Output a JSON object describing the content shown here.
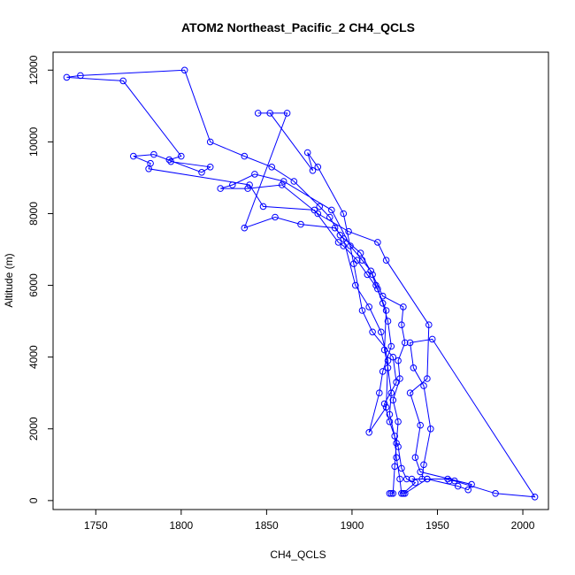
{
  "chart_data": {
    "type": "line",
    "title": "ATOM2 Northeast_Pacific_2 CH4_QCLS",
    "xlabel": "CH4_QCLS",
    "ylabel": "Altitude (m)",
    "xlim": [
      1725,
      2015
    ],
    "ylim": [
      -250,
      12500
    ],
    "xticks": [
      1750,
      1800,
      1850,
      1900,
      1950,
      2000
    ],
    "yticks": [
      0,
      2000,
      4000,
      6000,
      8000,
      10000,
      12000
    ],
    "grid": false,
    "legend": "none",
    "marker": "open-circle",
    "color": "#0000ff",
    "series": [
      {
        "points": [
          [
            1922,
            200
          ],
          [
            1923,
            200
          ],
          [
            1924,
            200
          ],
          [
            1925,
            950
          ],
          [
            1926,
            1600
          ],
          [
            1927,
            2200
          ],
          [
            1924,
            2800
          ],
          [
            1928,
            3400
          ],
          [
            1927,
            3900
          ],
          [
            1931,
            4400
          ],
          [
            1929,
            4900
          ],
          [
            1930,
            5400
          ],
          [
            1918,
            5700
          ],
          [
            1912,
            6300
          ],
          [
            1905,
            6900
          ],
          [
            1893,
            7400
          ],
          [
            1887,
            7900
          ],
          [
            1881,
            8200
          ],
          [
            1866,
            8900
          ],
          [
            1853,
            9300
          ],
          [
            1837,
            9600
          ],
          [
            1817,
            10000
          ],
          [
            1802,
            12000
          ],
          [
            1741,
            11850
          ],
          [
            1733,
            11800
          ],
          [
            1766,
            11700
          ],
          [
            1800,
            9600
          ],
          [
            1793,
            9500
          ],
          [
            1794,
            9450
          ],
          [
            1817,
            9300
          ],
          [
            1812,
            9150
          ],
          [
            1784,
            9650
          ],
          [
            1772,
            9600
          ],
          [
            1782,
            9400
          ],
          [
            1781,
            9250
          ],
          [
            1840,
            8800
          ],
          [
            1848,
            8200
          ],
          [
            1878,
            8100
          ],
          [
            1892,
            7200
          ],
          [
            1895,
            7100
          ],
          [
            1903,
            6700
          ],
          [
            1909,
            6300
          ],
          [
            1915,
            5900
          ],
          [
            1920,
            5300
          ],
          [
            1919,
            4200
          ],
          [
            1921,
            3700
          ],
          [
            1923,
            3000
          ],
          [
            1922,
            2400
          ],
          [
            1925,
            1800
          ],
          [
            1926,
            1200
          ],
          [
            1928,
            600
          ],
          [
            1929,
            200
          ],
          [
            1930,
            200
          ],
          [
            1931,
            200
          ],
          [
            1944,
            600
          ],
          [
            1956,
            600
          ],
          [
            1957,
            550
          ],
          [
            1960,
            550
          ],
          [
            1984,
            200
          ],
          [
            2007,
            100
          ],
          [
            1947,
            4500
          ],
          [
            1934,
            4400
          ],
          [
            1936,
            3700
          ],
          [
            1942,
            3200
          ],
          [
            1946,
            2000
          ],
          [
            1942,
            1000
          ],
          [
            1941,
            600
          ],
          [
            1935,
            600
          ],
          [
            1944,
            600
          ],
          [
            1962,
            400
          ],
          [
            1968,
            300
          ],
          [
            1970,
            450
          ],
          [
            1940,
            800
          ],
          [
            1937,
            1200
          ],
          [
            1940,
            2100
          ],
          [
            1934,
            3000
          ],
          [
            1944,
            3400
          ],
          [
            1945,
            4900
          ],
          [
            1920,
            6700
          ],
          [
            1915,
            7200
          ],
          [
            1898,
            7500
          ],
          [
            1880,
            8000
          ],
          [
            1859,
            8800
          ],
          [
            1839,
            8700
          ],
          [
            1823,
            8700
          ],
          [
            1830,
            8800
          ],
          [
            1843,
            9100
          ],
          [
            1860,
            8900
          ],
          [
            1888,
            8100
          ],
          [
            1899,
            7100
          ],
          [
            1906,
            6700
          ],
          [
            1911,
            6400
          ],
          [
            1914,
            6000
          ],
          [
            1918,
            5500
          ],
          [
            1921,
            5000
          ],
          [
            1923,
            4300
          ],
          [
            1918,
            3600
          ],
          [
            1916,
            3000
          ],
          [
            1910,
            1900
          ],
          [
            1920,
            2600
          ],
          [
            1921,
            3900
          ],
          [
            1917,
            4700
          ],
          [
            1910,
            5400
          ],
          [
            1902,
            6000
          ],
          [
            1895,
            7300
          ],
          [
            1890,
            7600
          ],
          [
            1870,
            7700
          ],
          [
            1855,
            7900
          ],
          [
            1837,
            7600
          ],
          [
            1862,
            10800
          ],
          [
            1845,
            10800
          ],
          [
            1852,
            10800
          ],
          [
            1877,
            9200
          ],
          [
            1874,
            9700
          ],
          [
            1880,
            9300
          ],
          [
            1895,
            8000
          ],
          [
            1901,
            6600
          ],
          [
            1906,
            5300
          ],
          [
            1912,
            4700
          ],
          [
            1924,
            4000
          ],
          [
            1926,
            3300
          ],
          [
            1919,
            2700
          ],
          [
            1922,
            2200
          ],
          [
            1927,
            1500
          ],
          [
            1929,
            900
          ],
          [
            1932,
            600
          ],
          [
            1937,
            500
          ],
          [
            1930,
            200
          ]
        ]
      }
    ]
  }
}
